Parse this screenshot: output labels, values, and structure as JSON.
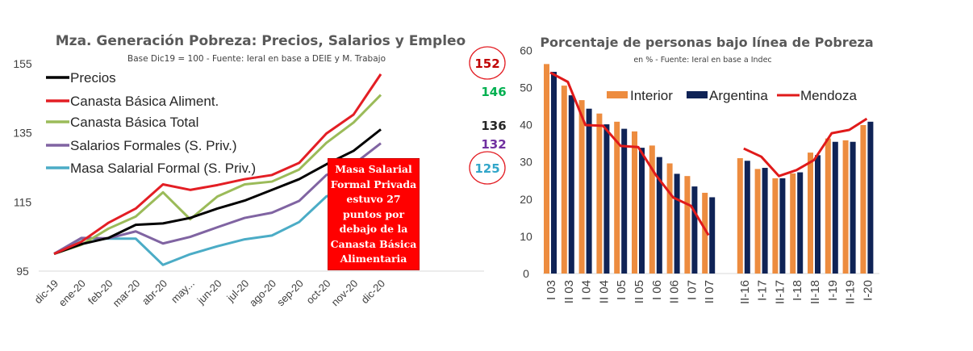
{
  "chart_data": [
    {
      "type": "line",
      "title": "Mza. Generación Pobreza: Precios, Salarios y Empleo",
      "subtitle": "Base Dic19 = 100 - Fuente: Ieral en base a DEIE y M. Trabajo",
      "categories": [
        "dic-19",
        "ene-20",
        "feb-20",
        "mar-20",
        "abr-20",
        "may...",
        "jun-20",
        "jul-20",
        "ago-20",
        "sep-20",
        "oct-20",
        "nov-20",
        "dic-20"
      ],
      "ylim": [
        95,
        155
      ],
      "yticks": [
        "95",
        "115",
        "135",
        "155"
      ],
      "grid": false,
      "legend": "top-left",
      "series": [
        {
          "name": "Precios",
          "color": "#000000",
          "values": [
            100,
            102.8,
            104.6,
            108.4,
            108.8,
            110.4,
            113.1,
            115.4,
            118.5,
            121.6,
            125.9,
            129.8,
            136
          ],
          "end_label": "136",
          "circled": false
        },
        {
          "name": "Canasta Básica Aliment.",
          "color": "#e31e24",
          "values": [
            100,
            103.5,
            109,
            113.1,
            120.1,
            118.5,
            119.9,
            121.6,
            122.8,
            126.3,
            134.8,
            140.3,
            152
          ],
          "end_label": "152",
          "circled": true
        },
        {
          "name": "Canasta Básica Total",
          "color": "#9bbb59",
          "values": [
            100,
            102.6,
            107.3,
            110.8,
            117.8,
            110,
            116.6,
            120.1,
            120.9,
            124.4,
            132.1,
            138,
            146
          ],
          "end_label": "146",
          "circled": false
        },
        {
          "name": "Salarios Formales (S. Priv.)",
          "color": "#8064a2",
          "values": [
            100,
            104.6,
            104.5,
            106.5,
            103,
            104.9,
            107.7,
            110.4,
            111.9,
            115.3,
            122.8,
            125.9,
            132
          ],
          "end_label": "132",
          "circled": false
        },
        {
          "name": "Masa Salarial Formal (S. Priv.)",
          "color": "#4bacc6",
          "values": [
            100,
            104.4,
            104.4,
            104.4,
            96.8,
            99.9,
            102.2,
            104.2,
            105.3,
            109.2,
            116.6,
            119.3,
            125
          ],
          "end_label": "125",
          "circled": true
        }
      ],
      "end_label_colors": {
        "136": "#262626",
        "152": "#c00000",
        "146": "#00b050",
        "132": "#7030a0",
        "125": "#31a6c9"
      },
      "annotation": [
        "Masa Salarial",
        "Formal Privada",
        "estuvo 27",
        "puntos por",
        "debajo de la",
        "Canasta Básica",
        "Alimentaria"
      ]
    },
    {
      "type": "bar",
      "title": "Porcentaje de personas bajo línea de Pobreza",
      "subtitle": "en % - Fuente: Ieral en base a Indec",
      "categories": [
        "I 03",
        "II 03",
        "I 04",
        "II 04",
        "I 05",
        "II 05",
        "I 06",
        "II 06",
        "I 07",
        "II 07",
        "II-16",
        "I-17",
        "II-17",
        "I-18",
        "II-18",
        "I-19",
        "II-19",
        "I-20"
      ],
      "ylim": [
        0,
        60
      ],
      "yticks": [
        "0",
        "10",
        "20",
        "30",
        "40",
        "50",
        "60"
      ],
      "grid": false,
      "legend": "top-center",
      "series": [
        {
          "name": "Interior",
          "kind": "bar",
          "color": "#ed8c3f",
          "values": [
            56.3,
            50.5,
            46.6,
            43,
            40.8,
            38.2,
            34.4,
            29.6,
            26.2,
            21.7,
            31,
            28.1,
            25.6,
            26.9,
            32.5,
            36.3,
            35.8,
            39.9
          ]
        },
        {
          "name": "Argentina",
          "kind": "bar",
          "color": "#0f2356",
          "values": [
            54.2,
            47.9,
            44.3,
            40.1,
            38.9,
            33.8,
            31.3,
            26.8,
            23.4,
            20.5,
            30.3,
            28.4,
            25.6,
            27.2,
            31.8,
            35.4,
            35.4,
            40.8
          ]
        },
        {
          "name": "Mendoza",
          "kind": "line",
          "color": "#e01a1a",
          "values": [
            54,
            51.5,
            39.9,
            39.7,
            34.3,
            34,
            26.5,
            20.4,
            18.2,
            10.3,
            33.6,
            31.4,
            26.2,
            27.8,
            30.5,
            37.7,
            38.6,
            41.6
          ]
        }
      ]
    }
  ]
}
